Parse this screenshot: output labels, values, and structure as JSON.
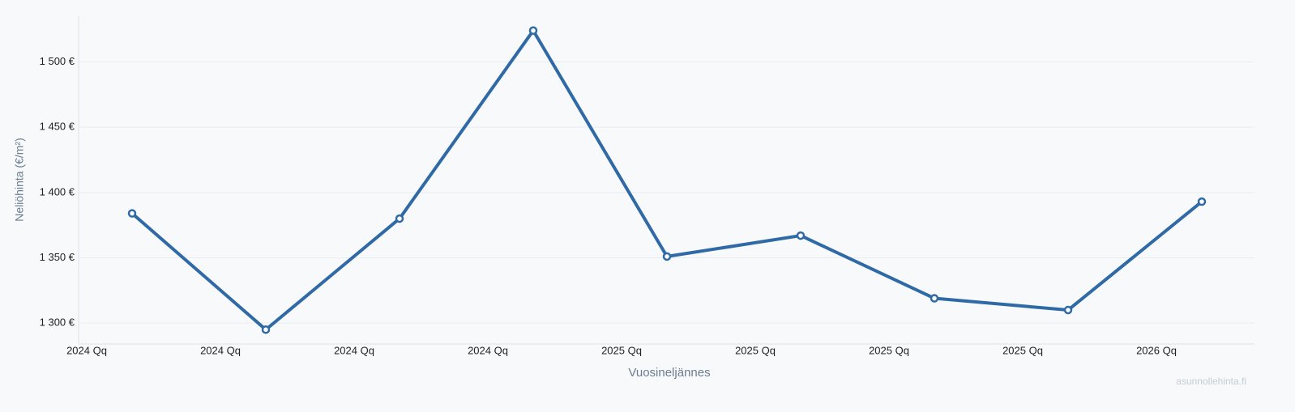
{
  "chart_data": {
    "type": "line",
    "x_label": "Vuosineljännes",
    "y_label": "Neliöhinta (€/m²)",
    "watermark": "asunnollehinta.fi",
    "categories": [
      "2024 Qq",
      "2024 Qq",
      "2024 Qq",
      "2024 Qq",
      "2025 Qq",
      "2025 Qq",
      "2025 Qq",
      "2025 Qq",
      "2026 Qq"
    ],
    "series": [
      {
        "name": "Neliöhinta",
        "color": "#2f6aa6",
        "values": [
          1384,
          1295,
          1380,
          1524,
          1351,
          1367,
          1319,
          1310,
          1393
        ]
      }
    ],
    "ylim": [
      1284,
      1535
    ],
    "yticks": [
      {
        "value": 1300,
        "label": "1 300 €"
      },
      {
        "value": 1350,
        "label": "1 350 €"
      },
      {
        "value": 1400,
        "label": "1 400 €"
      },
      {
        "value": 1450,
        "label": "1 450 €"
      },
      {
        "value": 1500,
        "label": "1 500 €"
      }
    ],
    "grid": true
  }
}
